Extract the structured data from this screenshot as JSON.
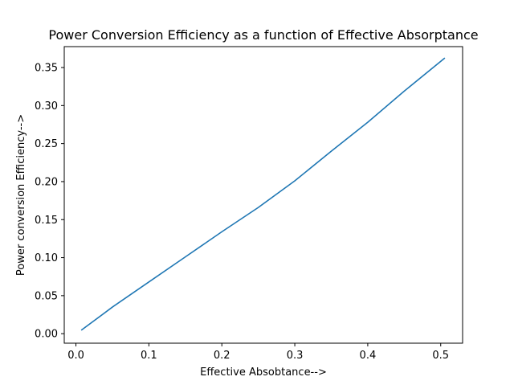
{
  "chart_data": {
    "type": "line",
    "title": "Power Conversion Efficiency as a function of Effective Absorptance",
    "xlabel": "Effective Absobtance-->",
    "ylabel": "Power conversion Efficiency-->",
    "xlim": [
      -0.016,
      0.53
    ],
    "ylim": [
      -0.0125,
      0.3775
    ],
    "xticks": [
      0.0,
      0.1,
      0.2,
      0.3,
      0.4,
      0.5
    ],
    "xtick_labels": [
      "0.0",
      "0.1",
      "0.2",
      "0.3",
      "0.4",
      "0.5"
    ],
    "yticks": [
      0.0,
      0.05,
      0.1,
      0.15,
      0.2,
      0.25,
      0.3,
      0.35
    ],
    "ytick_labels": [
      "0.00",
      "0.05",
      "0.10",
      "0.15",
      "0.20",
      "0.25",
      "0.30",
      "0.35"
    ],
    "grid": false,
    "legend": null,
    "series": [
      {
        "color": "#1f77b4",
        "x": [
          0.008,
          0.05,
          0.1,
          0.15,
          0.2,
          0.25,
          0.3,
          0.35,
          0.4,
          0.45,
          0.505
        ],
        "y": [
          0.005,
          0.035,
          0.068,
          0.101,
          0.134,
          0.166,
          0.201,
          0.24,
          0.278,
          0.319,
          0.362
        ]
      }
    ]
  }
}
